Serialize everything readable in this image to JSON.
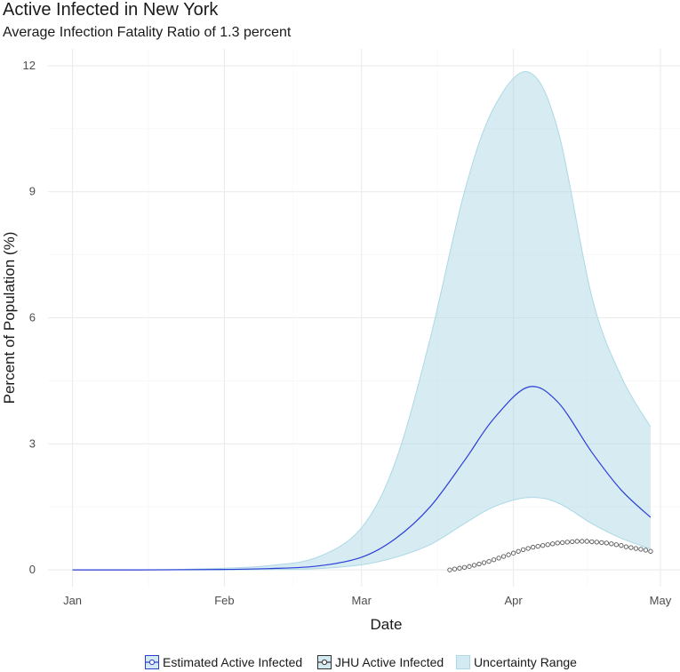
{
  "chart_data": {
    "type": "line",
    "title": "Active Infected in New York",
    "subtitle": "Average Infection Fatality Ratio of 1.3 percent",
    "xlabel": "Date",
    "ylabel": "Percent of Population (%)",
    "x_ticks": [
      "Jan",
      "Feb",
      "Mar",
      "Apr",
      "May"
    ],
    "y_ticks": [
      "0",
      "3",
      "6",
      "9",
      "12"
    ],
    "ylim": [
      -0.4,
      12.4
    ],
    "xlim": [
      "2020-12-27",
      "2021-05-05"
    ],
    "grid": true,
    "legend_position": "bottom",
    "series": [
      {
        "name": "Estimated Active Infected",
        "kind": "line",
        "color": "#2b3fd6",
        "x": [
          "2021-01-01",
          "2021-01-15",
          "2021-02-01",
          "2021-02-10",
          "2021-02-20",
          "2021-03-01",
          "2021-03-08",
          "2021-03-15",
          "2021-03-22",
          "2021-03-28",
          "2021-04-04",
          "2021-04-10",
          "2021-04-17",
          "2021-04-23",
          "2021-04-29"
        ],
        "y": [
          0.0,
          0.0,
          0.01,
          0.03,
          0.09,
          0.3,
          0.75,
          1.5,
          2.6,
          3.6,
          4.35,
          4.0,
          2.8,
          1.9,
          1.25
        ]
      },
      {
        "name": "JHU Active Infected",
        "kind": "points",
        "color": "#555555",
        "x": [
          "2021-03-19",
          "2021-03-20",
          "2021-03-21",
          "2021-03-22",
          "2021-03-23",
          "2021-03-24",
          "2021-03-25",
          "2021-03-26",
          "2021-03-27",
          "2021-03-28",
          "2021-03-29",
          "2021-03-30",
          "2021-03-31",
          "2021-04-01",
          "2021-04-02",
          "2021-04-03",
          "2021-04-04",
          "2021-04-05",
          "2021-04-06",
          "2021-04-07",
          "2021-04-08",
          "2021-04-09",
          "2021-04-10",
          "2021-04-11",
          "2021-04-12",
          "2021-04-13",
          "2021-04-14",
          "2021-04-15",
          "2021-04-16",
          "2021-04-17",
          "2021-04-18",
          "2021-04-19",
          "2021-04-20",
          "2021-04-21",
          "2021-04-22",
          "2021-04-23",
          "2021-04-24",
          "2021-04-25",
          "2021-04-26",
          "2021-04-27",
          "2021-04-28",
          "2021-04-29"
        ],
        "y": [
          0.0,
          0.02,
          0.04,
          0.06,
          0.08,
          0.11,
          0.14,
          0.17,
          0.2,
          0.24,
          0.28,
          0.32,
          0.36,
          0.4,
          0.44,
          0.48,
          0.51,
          0.54,
          0.56,
          0.58,
          0.6,
          0.62,
          0.64,
          0.65,
          0.66,
          0.67,
          0.68,
          0.68,
          0.68,
          0.67,
          0.66,
          0.65,
          0.64,
          0.62,
          0.6,
          0.58,
          0.55,
          0.53,
          0.51,
          0.49,
          0.47,
          0.44
        ]
      },
      {
        "name": "Uncertainty Range",
        "kind": "ribbon",
        "color": "#add8e6",
        "x": [
          "2021-01-01",
          "2021-01-15",
          "2021-02-01",
          "2021-02-10",
          "2021-02-20",
          "2021-03-01",
          "2021-03-08",
          "2021-03-15",
          "2021-03-22",
          "2021-03-28",
          "2021-04-04",
          "2021-04-10",
          "2021-04-17",
          "2021-04-23",
          "2021-04-29"
        ],
        "lower": [
          0.0,
          0.0,
          0.0,
          0.01,
          0.03,
          0.12,
          0.3,
          0.6,
          1.1,
          1.5,
          1.72,
          1.6,
          1.1,
          0.75,
          0.5
        ],
        "upper": [
          0.0,
          0.0,
          0.04,
          0.1,
          0.3,
          1.0,
          2.6,
          5.5,
          9.0,
          11.0,
          11.85,
          10.5,
          6.5,
          4.6,
          3.4
        ]
      }
    ]
  }
}
